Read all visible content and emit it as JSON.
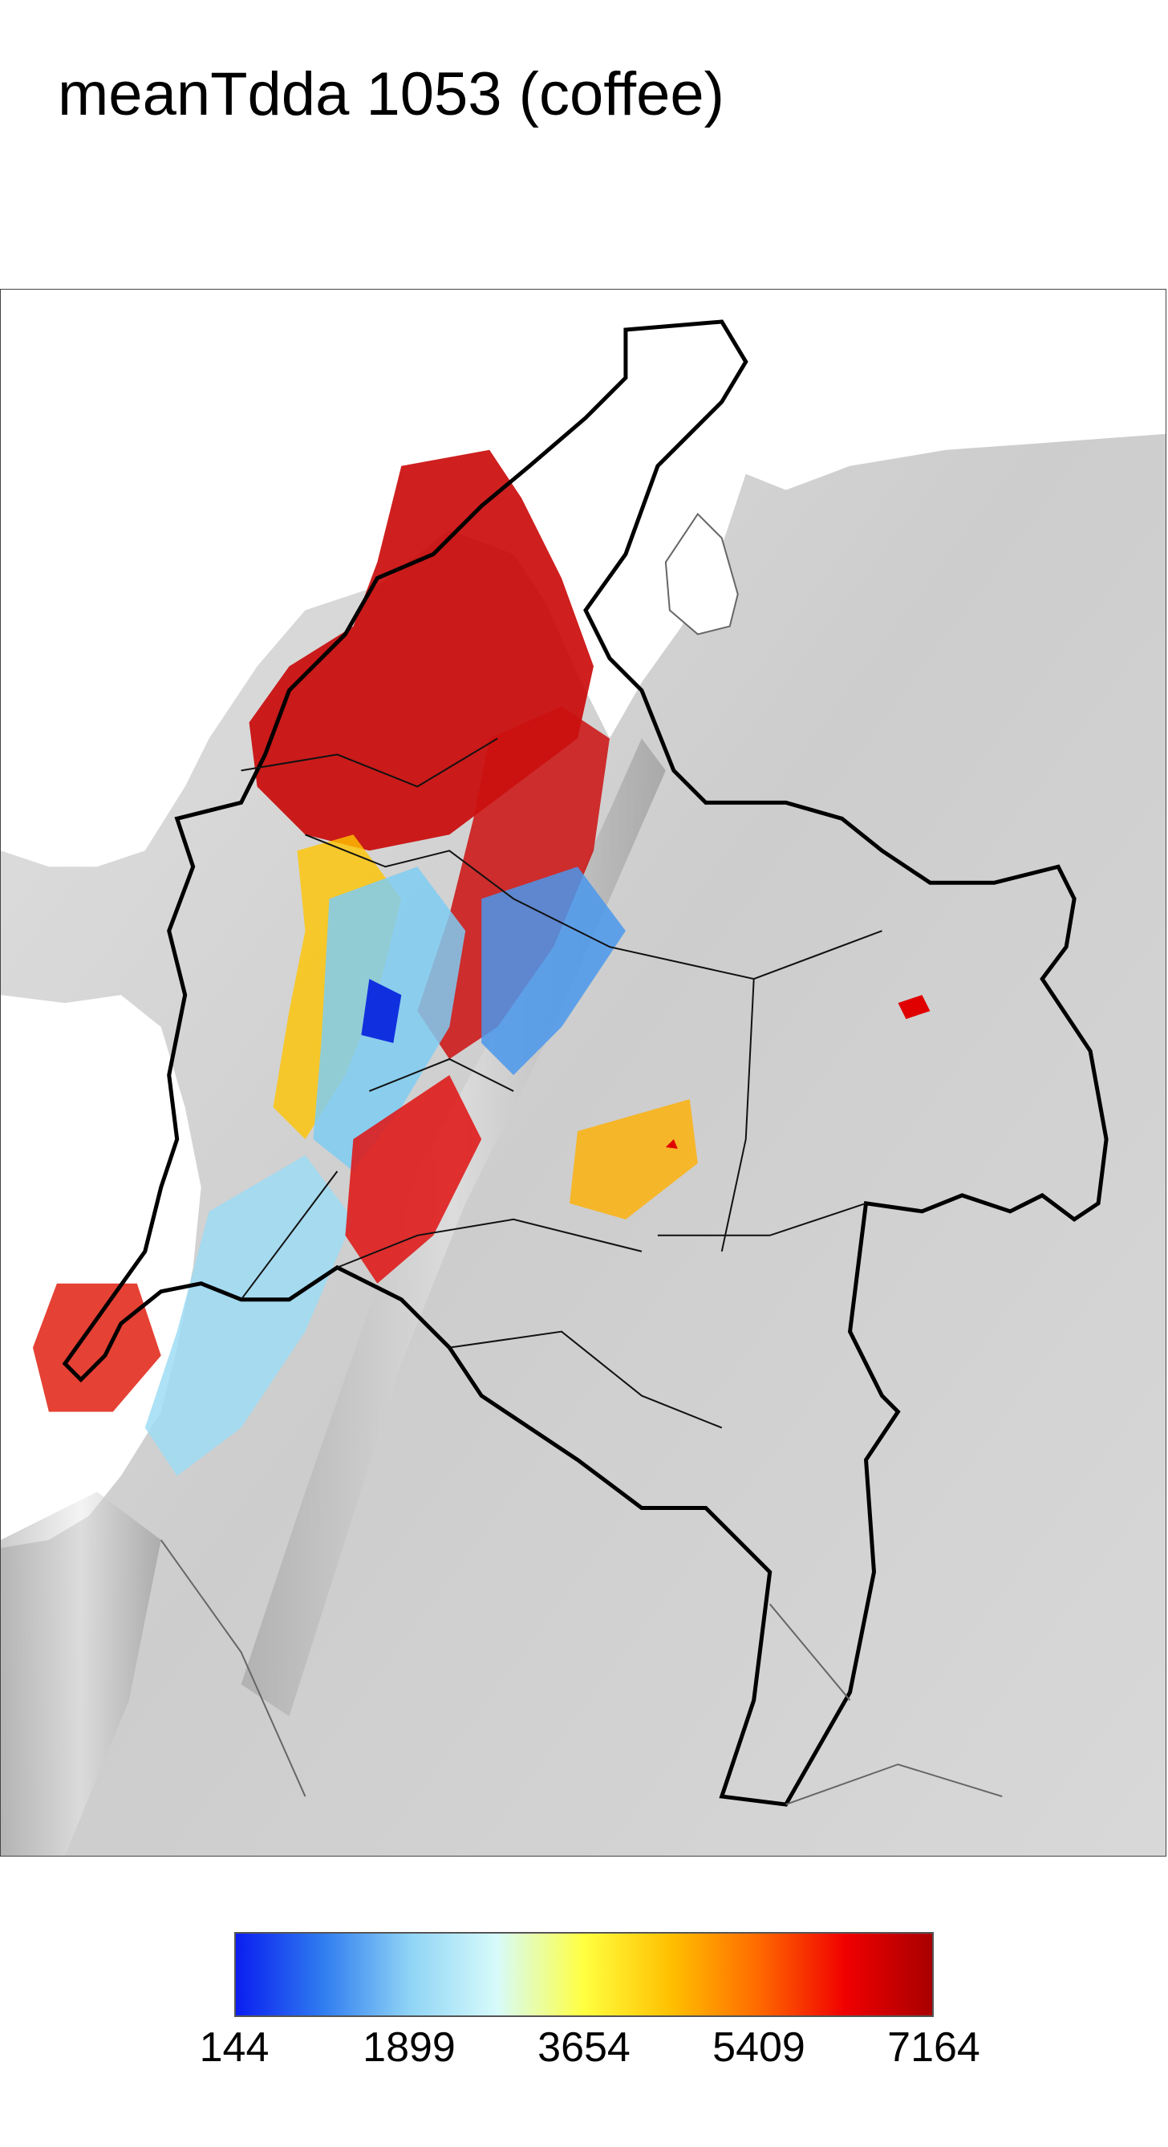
{
  "title": "meanTdda 1053 (coffee)",
  "legend": {
    "min": 144,
    "max": 7164,
    "ticks": [
      "144",
      "1899",
      "3654",
      "5409",
      "7164"
    ],
    "gradient": [
      "#0a1ef0",
      "#2f7cf0",
      "#8fd4f5",
      "#d7fbfb",
      "#ffff40",
      "#ffc000",
      "#ff6a00",
      "#f00000",
      "#a80000"
    ]
  },
  "colors": {
    "terrain": "#d2d2d2",
    "water": "#ffffff",
    "boundary": "#000000"
  }
}
